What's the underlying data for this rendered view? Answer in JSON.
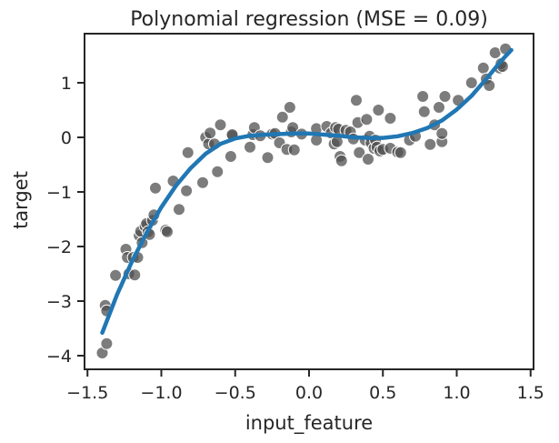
{
  "chart_data": {
    "type": "scatter",
    "title": "Polynomial regression (MSE = 0.09)",
    "xlabel": "input_feature",
    "ylabel": "target",
    "xlim": [
      -1.52,
      1.52
    ],
    "ylim": [
      -4.25,
      1.9
    ],
    "xticks": [
      -1.5,
      -1.0,
      -0.5,
      0.0,
      0.5,
      1.0,
      1.5
    ],
    "xtick_labels": [
      "−1.5",
      "−1.0",
      "−0.5",
      "0.0",
      "0.5",
      "1.0",
      "1.5"
    ],
    "yticks": [
      -4,
      -3,
      -2,
      -1,
      0,
      1
    ],
    "ytick_labels": [
      "−4",
      "−3",
      "−2",
      "−1",
      "0",
      "1"
    ],
    "grid": false,
    "series": [
      {
        "type": "scatter",
        "color": "#505050",
        "points": [
          [
            -1.4,
            -3.95
          ],
          [
            -1.38,
            -3.08
          ],
          [
            -1.37,
            -3.18
          ],
          [
            -1.37,
            -3.78
          ],
          [
            -1.31,
            -2.53
          ],
          [
            -1.24,
            -2.05
          ],
          [
            -1.23,
            -2.2
          ],
          [
            -1.22,
            -2.5
          ],
          [
            -1.19,
            -2.2
          ],
          [
            -1.18,
            -2.52
          ],
          [
            -1.16,
            -2.2
          ],
          [
            -1.15,
            -1.8
          ],
          [
            -1.14,
            -1.72
          ],
          [
            -1.13,
            -1.93
          ],
          [
            -1.11,
            -1.63
          ],
          [
            -1.1,
            -1.58
          ],
          [
            -1.09,
            -1.73
          ],
          [
            -1.08,
            -1.78
          ],
          [
            -1.06,
            -1.52
          ],
          [
            -1.05,
            -1.42
          ],
          [
            -1.04,
            -0.93
          ],
          [
            -0.97,
            -1.7
          ],
          [
            -0.96,
            -1.73
          ],
          [
            -0.92,
            -0.8
          ],
          [
            -0.88,
            -1.32
          ],
          [
            -0.83,
            -0.98
          ],
          [
            -0.82,
            -0.28
          ],
          [
            -0.72,
            -0.83
          ],
          [
            -0.7,
            0.0
          ],
          [
            -0.68,
            -0.12
          ],
          [
            -0.67,
            0.08
          ],
          [
            -0.64,
            -0.12
          ],
          [
            -0.62,
            -0.63
          ],
          [
            -0.6,
            0.23
          ],
          [
            -0.53,
            -0.35
          ],
          [
            -0.52,
            0.03
          ],
          [
            -0.52,
            0.05
          ],
          [
            -0.4,
            -0.18
          ],
          [
            -0.38,
            0.05
          ],
          [
            -0.37,
            0.18
          ],
          [
            -0.33,
            0.03
          ],
          [
            -0.28,
            -0.37
          ],
          [
            -0.25,
            0.06
          ],
          [
            -0.23,
            0.07
          ],
          [
            -0.2,
            -0.1
          ],
          [
            -0.18,
            0.37
          ],
          [
            -0.15,
            -0.22
          ],
          [
            -0.13,
            0.55
          ],
          [
            -0.12,
            0.1
          ],
          [
            -0.11,
            0.18
          ],
          [
            -0.1,
            -0.23
          ],
          [
            -0.05,
            0.06
          ],
          [
            0.05,
            0.16
          ],
          [
            0.05,
            -0.05
          ],
          [
            0.12,
            0.2
          ],
          [
            0.15,
            0.08
          ],
          [
            0.17,
            -0.12
          ],
          [
            0.18,
            0.18
          ],
          [
            0.19,
            -0.08
          ],
          [
            0.2,
            0.15
          ],
          [
            0.21,
            -0.35
          ],
          [
            0.22,
            -0.43
          ],
          [
            0.25,
            0.13
          ],
          [
            0.28,
            0.1
          ],
          [
            0.3,
            -0.03
          ],
          [
            0.32,
            0.68
          ],
          [
            0.33,
            0.27
          ],
          [
            0.34,
            -0.28
          ],
          [
            0.38,
            -0.05
          ],
          [
            0.39,
            0.33
          ],
          [
            0.4,
            -0.4
          ],
          [
            0.41,
            0.02
          ],
          [
            0.42,
            -0.1
          ],
          [
            0.44,
            -0.2
          ],
          [
            0.45,
            -0.05
          ],
          [
            0.46,
            -0.18
          ],
          [
            0.47,
            0.5
          ],
          [
            0.48,
            -0.25
          ],
          [
            0.5,
            -0.22
          ],
          [
            0.55,
            -0.2
          ],
          [
            0.55,
            0.35
          ],
          [
            0.6,
            -0.27
          ],
          [
            0.62,
            -0.28
          ],
          [
            0.68,
            -0.05
          ],
          [
            0.72,
            0.02
          ],
          [
            0.77,
            0.75
          ],
          [
            0.78,
            0.47
          ],
          [
            0.82,
            -0.13
          ],
          [
            0.85,
            0.23
          ],
          [
            0.88,
            0.55
          ],
          [
            0.9,
            -0.08
          ],
          [
            0.9,
            0.07
          ],
          [
            0.92,
            0.75
          ],
          [
            1.01,
            0.68
          ],
          [
            1.1,
            1.0
          ],
          [
            1.18,
            1.27
          ],
          [
            1.2,
            1.07
          ],
          [
            1.22,
            0.95
          ],
          [
            1.26,
            1.55
          ],
          [
            1.29,
            1.27
          ],
          [
            1.3,
            1.35
          ],
          [
            1.31,
            1.3
          ],
          [
            1.33,
            1.62
          ]
        ]
      },
      {
        "type": "line",
        "color": "#2077b4",
        "points": [
          [
            -1.4,
            -3.58
          ],
          [
            -1.3,
            -2.88
          ],
          [
            -1.2,
            -2.28
          ],
          [
            -1.1,
            -1.75
          ],
          [
            -1.0,
            -1.28
          ],
          [
            -0.9,
            -0.88
          ],
          [
            -0.8,
            -0.56
          ],
          [
            -0.7,
            -0.3
          ],
          [
            -0.6,
            -0.12
          ],
          [
            -0.5,
            -0.02
          ],
          [
            -0.4,
            0.03
          ],
          [
            -0.3,
            0.05
          ],
          [
            -0.2,
            0.06
          ],
          [
            -0.1,
            0.07
          ],
          [
            0.0,
            0.07
          ],
          [
            0.1,
            0.05
          ],
          [
            0.2,
            0.03
          ],
          [
            0.3,
            0.0
          ],
          [
            0.4,
            -0.01
          ],
          [
            0.5,
            -0.01
          ],
          [
            0.6,
            0.02
          ],
          [
            0.7,
            0.08
          ],
          [
            0.8,
            0.17
          ],
          [
            0.9,
            0.31
          ],
          [
            1.0,
            0.51
          ],
          [
            1.1,
            0.76
          ],
          [
            1.2,
            1.07
          ],
          [
            1.3,
            1.4
          ],
          [
            1.37,
            1.6
          ]
        ]
      }
    ]
  }
}
